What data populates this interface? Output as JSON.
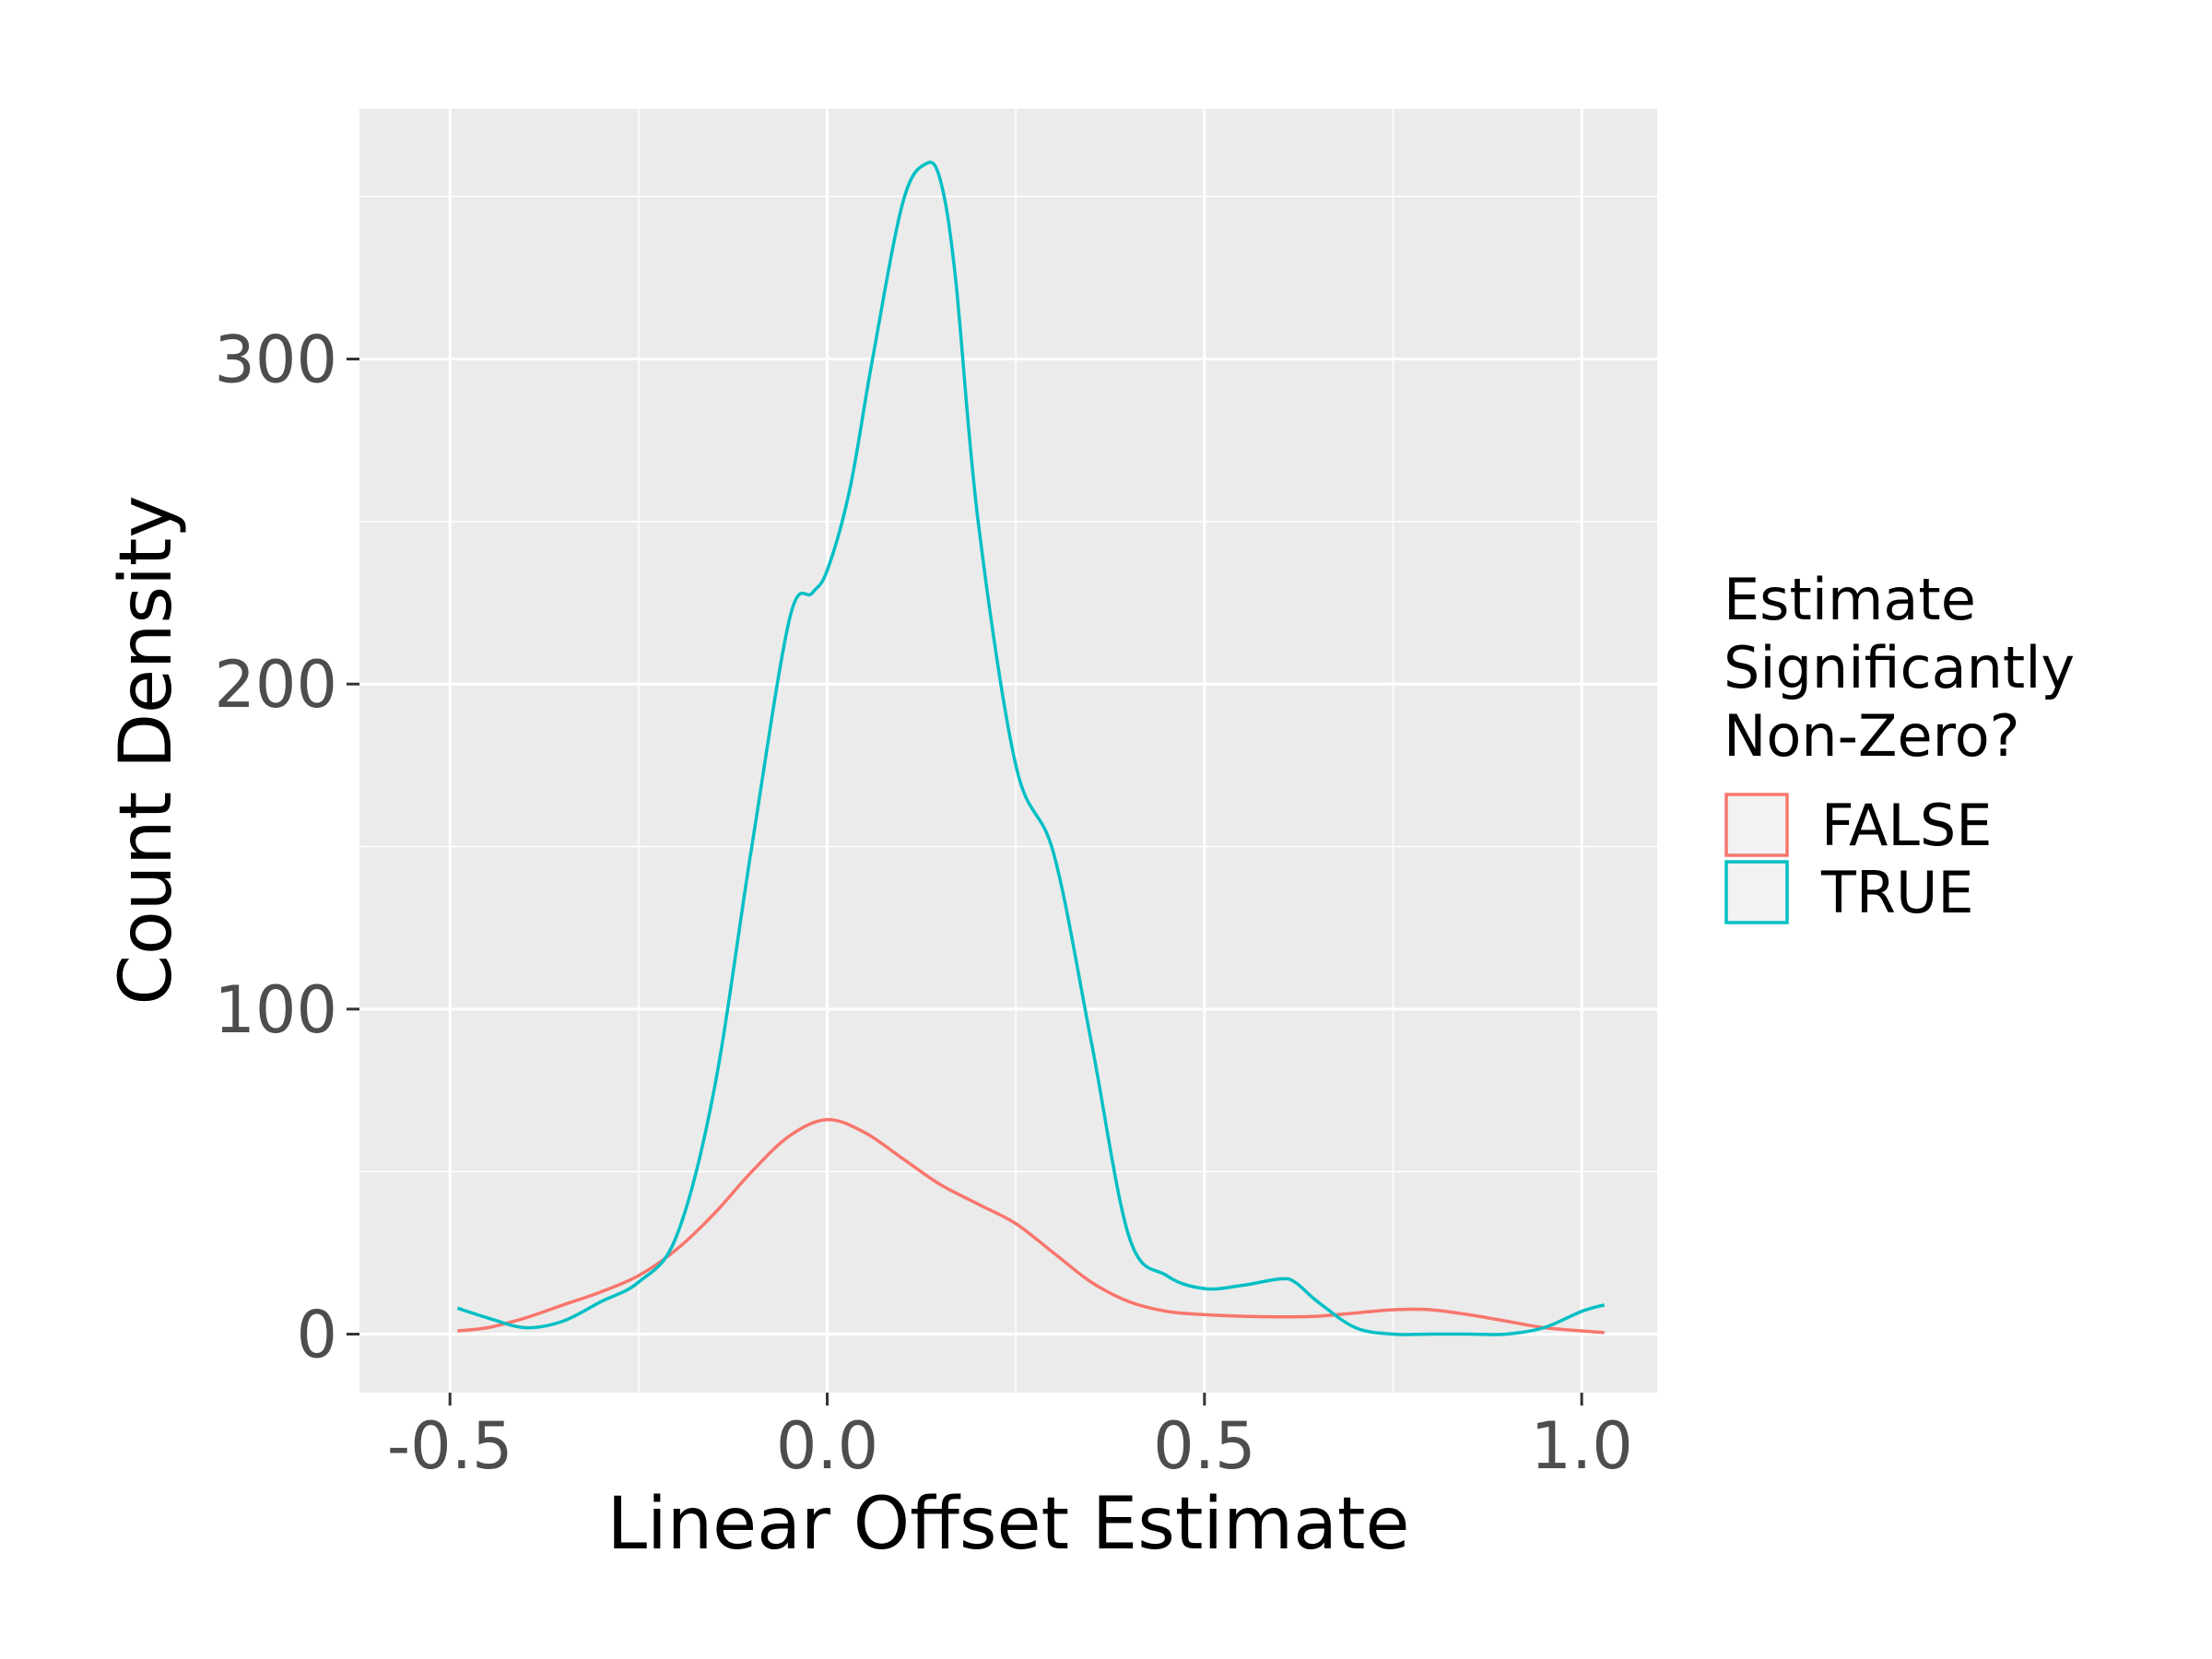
{
  "chart_data": {
    "type": "line",
    "title": "",
    "xlabel": "Linear Offset Estimate",
    "ylabel": "Count Density",
    "xlim": [
      -0.62,
      1.1
    ],
    "ylim": [
      -18,
      377
    ],
    "x_ticks": [
      -0.5,
      0.0,
      0.5,
      1.0
    ],
    "x_tick_labels": [
      "-0.5",
      "0.0",
      "0.5",
      "1.0"
    ],
    "y_ticks": [
      0,
      100,
      200,
      300
    ],
    "y_tick_labels": [
      "0",
      "100",
      "200",
      "300"
    ],
    "grid": true,
    "legend": {
      "title": "Estimate\nSignificantly\nNon-Zero?",
      "placement": "right"
    },
    "series": [
      {
        "name": "FALSE",
        "color": "#F8766D",
        "x": [
          -0.49,
          -0.45,
          -0.4,
          -0.35,
          -0.3,
          -0.25,
          -0.2,
          -0.15,
          -0.1,
          -0.05,
          0.0,
          0.05,
          0.1,
          0.15,
          0.2,
          0.25,
          0.3,
          0.35,
          0.4,
          0.45,
          0.5,
          0.55,
          0.6,
          0.65,
          0.7,
          0.75,
          0.8,
          0.85,
          0.9,
          0.95,
          1.0,
          1.03
        ],
        "values": [
          1,
          2,
          5,
          9,
          13,
          18,
          26,
          37,
          50,
          61,
          66,
          62,
          54,
          46,
          40,
          34,
          25,
          16,
          10,
          7,
          6,
          5.5,
          5.3,
          5.5,
          6.5,
          7.5,
          7.5,
          6,
          4,
          2,
          1,
          0.5
        ]
      },
      {
        "name": "TRUE",
        "color": "#00BFC4",
        "x": [
          -0.49,
          -0.45,
          -0.4,
          -0.35,
          -0.3,
          -0.25,
          -0.2,
          -0.15,
          -0.1,
          -0.05,
          -0.02,
          0.0,
          0.03,
          0.06,
          0.1,
          0.13,
          0.15,
          0.17,
          0.2,
          0.25,
          0.3,
          0.35,
          0.4,
          0.45,
          0.5,
          0.55,
          0.6,
          0.62,
          0.65,
          0.7,
          0.75,
          0.8,
          0.85,
          0.9,
          0.95,
          1.0,
          1.03
        ],
        "values": [
          8,
          5,
          2,
          4,
          10,
          16,
          30,
          75,
          150,
          220,
          228,
          235,
          260,
          300,
          348,
          360,
          355,
          325,
          250,
          175,
          148,
          90,
          30,
          18,
          14,
          15,
          17,
          16,
          10,
          2,
          0,
          0,
          0,
          0,
          2,
          7,
          9
        ]
      }
    ]
  }
}
